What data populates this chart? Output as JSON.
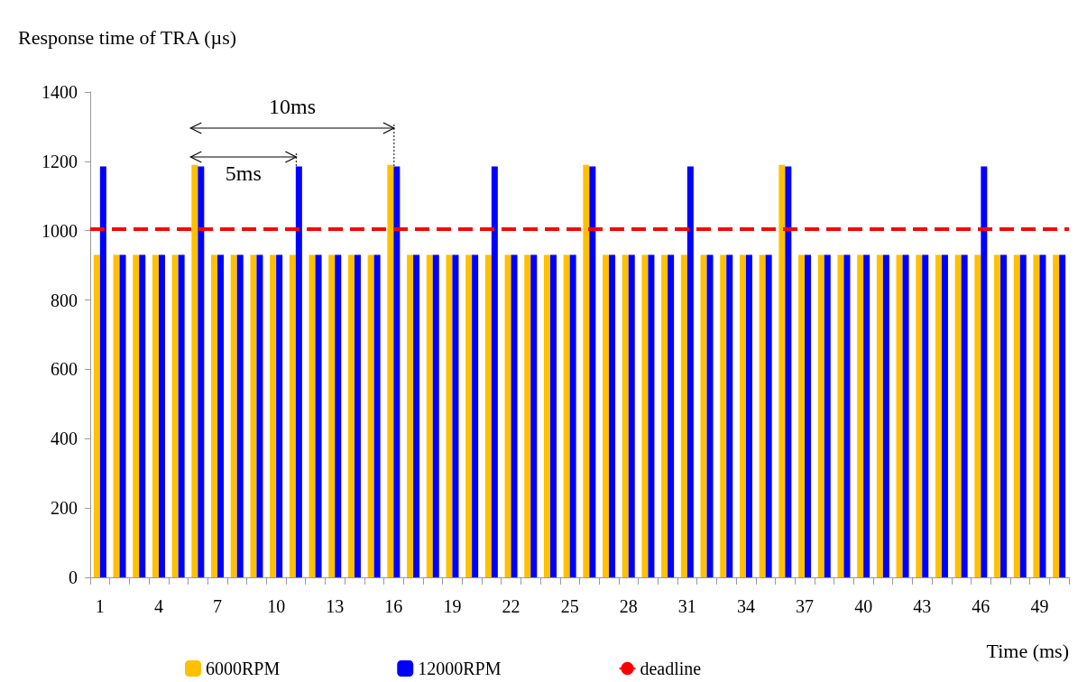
{
  "chart_data": {
    "type": "bar",
    "ylabel": "Response time of TRA (µs)",
    "xlabel": "Time (ms)",
    "categories": [
      "1",
      null,
      null,
      "4",
      null,
      null,
      "7",
      null,
      null,
      "10",
      null,
      null,
      "13",
      null,
      null,
      "16",
      null,
      null,
      "19",
      null,
      null,
      "22",
      null,
      null,
      "25",
      null,
      null,
      "28",
      null,
      null,
      "31",
      null,
      null,
      "34",
      null,
      null,
      "37",
      null,
      null,
      "40",
      null,
      null,
      "43",
      null,
      null,
      "46",
      null,
      null,
      "49",
      null
    ],
    "series": [
      {
        "name": "6000RPM",
        "color": "#ffc000",
        "values": [
          930,
          930,
          930,
          930,
          930,
          1190,
          930,
          930,
          930,
          930,
          930,
          930,
          930,
          930,
          930,
          1190,
          930,
          930,
          930,
          930,
          930,
          930,
          930,
          930,
          930,
          1190,
          930,
          930,
          930,
          930,
          930,
          930,
          930,
          930,
          930,
          1190,
          930,
          930,
          930,
          930,
          930,
          930,
          930,
          930,
          930,
          930,
          930,
          930,
          930,
          930
        ]
      },
      {
        "name": "12000RPM",
        "color": "#0000ff",
        "values": [
          1185,
          930,
          930,
          930,
          930,
          1185,
          930,
          930,
          930,
          930,
          1185,
          930,
          930,
          930,
          930,
          1185,
          930,
          930,
          930,
          930,
          1185,
          930,
          930,
          930,
          930,
          1185,
          930,
          930,
          930,
          930,
          1185,
          930,
          930,
          930,
          930,
          1185,
          930,
          930,
          930,
          930,
          930,
          930,
          930,
          930,
          930,
          1185,
          930,
          930,
          930,
          930
        ]
      }
    ],
    "ref_lines": [
      {
        "axis": "y",
        "value": 1005,
        "label": "deadline",
        "color": "#ff0000",
        "line_style": "dashed"
      }
    ],
    "annotations": [
      "10ms",
      "5ms"
    ],
    "ylim": [
      0,
      1400
    ],
    "yticks": [
      0,
      200,
      400,
      600,
      800,
      1000,
      1200,
      1400
    ],
    "grid": false,
    "legend": "bottom"
  }
}
